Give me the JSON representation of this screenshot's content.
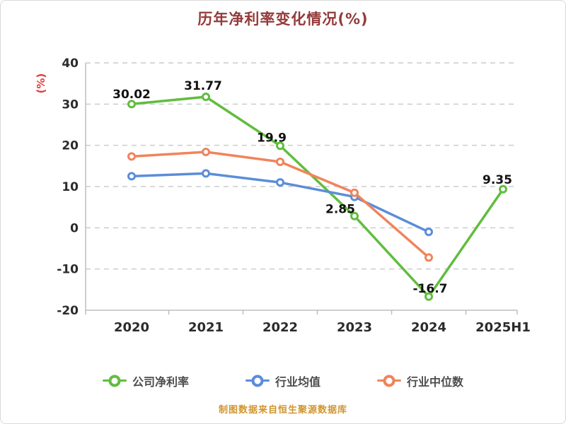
{
  "title": "历年净利率变化情况(%)",
  "footer": "制图数据来自恒生聚源数据库",
  "colors": {
    "title": "#943a3a",
    "footer": "#d0962e",
    "axis_label": "#e63939",
    "axis_line": "#bdbdbd",
    "grid_line": "#cccccc",
    "tick_text": "#2b2b2b",
    "data_label": "#111111",
    "legend_text": "#4d4d4d"
  },
  "chart_data": {
    "type": "line",
    "title": "历年净利率变化情况(%)",
    "ylabel": "(%)",
    "categories": [
      "2020",
      "2021",
      "2022",
      "2023",
      "2024",
      "2025H1"
    ],
    "ylim": [
      -20,
      40
    ],
    "yticks": [
      -20,
      -10,
      0,
      10,
      20,
      30,
      40
    ],
    "grid": "horizontal-dashed",
    "legend_position": "bottom",
    "series": [
      {
        "name": "公司净利率",
        "color": "#61bd3f",
        "values": [
          30.02,
          31.77,
          19.9,
          2.85,
          -16.7,
          9.35
        ],
        "labels": [
          "30.02",
          "31.77",
          "19.9",
          "2.85",
          "-16.7",
          "9.35"
        ]
      },
      {
        "name": "行业均值",
        "color": "#5b8dd9",
        "values": [
          12.5,
          13.2,
          11,
          7.5,
          -1,
          null
        ]
      },
      {
        "name": "行业中位数",
        "color": "#f0845c",
        "values": [
          17.3,
          18.4,
          16,
          8.5,
          -7.2,
          null
        ]
      }
    ]
  }
}
